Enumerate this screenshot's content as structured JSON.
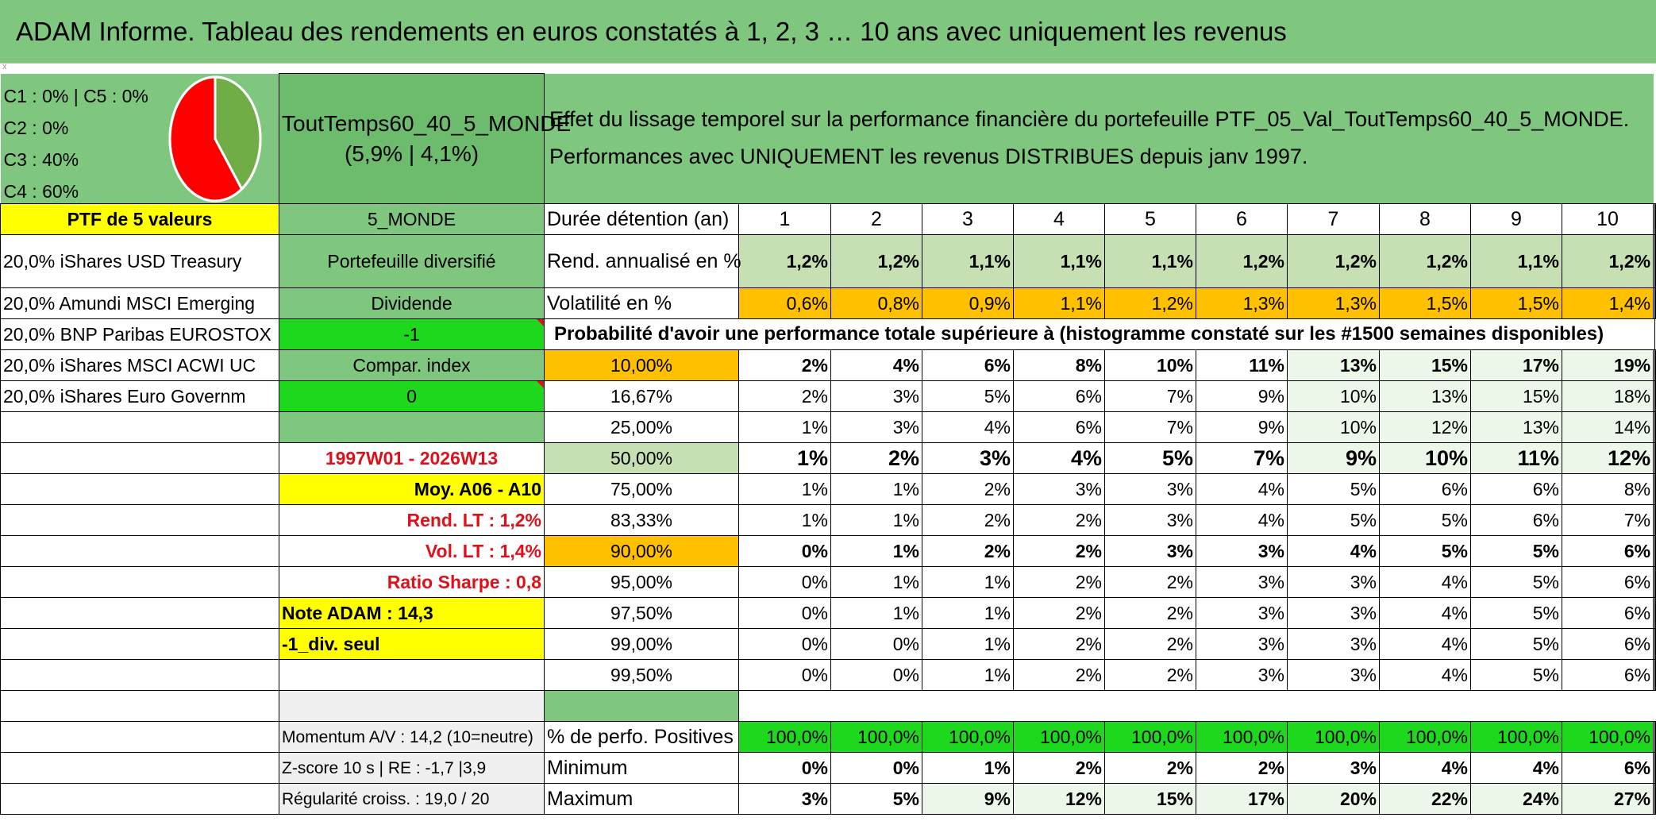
{
  "title": "ADAM Informe. Tableau des rendements en euros constatés à 1, 2, 3 … 10 ans avec uniquement les revenus",
  "marker": "x",
  "allocation": {
    "lines": [
      "C1 : 0% | C5 : 0%",
      "C2 : 0%",
      "C3 : 40%",
      "C4 : 60%"
    ],
    "pie_slices": [
      {
        "label": "C3",
        "percent": 40,
        "color": "#70ad47"
      },
      {
        "label": "C4",
        "percent": 60,
        "color": "#ff0000"
      }
    ]
  },
  "portfolio": {
    "name": "ToutTemps60_40_5_MONDE",
    "stats": "(5,9% | 4,1%)",
    "header_label": "PTF de 5 valeurs",
    "zone": "5_MONDE",
    "type": "Portefeuille diversifié",
    "dividende_label": "Dividende",
    "dividende_value": "-1",
    "compar_label": "Compar. index",
    "compar_value": "0",
    "period": "1997W01 - 2026W13",
    "moy": "Moy. A06 - A10",
    "rend_lt": "Rend. LT : 1,2%",
    "vol_lt": "Vol. LT : 1,4%",
    "sharpe": "Ratio Sharpe : 0,8",
    "note": "Note ADAM : 14,3",
    "div_seul": "-1_div. seul",
    "momentum": "Momentum A/V : 14,2 (10=neutre)",
    "zscore": "Z-score 10 s | RE : -1,7 |3,9",
    "regularite": "Régularité croiss. : 19,0 / 20"
  },
  "description": {
    "line1": "Effet du lissage temporel sur la performance financière du portefeuille PTF_05_Val_ToutTemps60_40_5_MONDE.",
    "line2": "Performances avec UNIQUEMENT les revenus DISTRIBUES depuis janv 1997."
  },
  "holdings": [
    "20,0% iShares USD Treasury",
    "20,0% Amundi MSCI Emerging",
    "20,0% BNP Paribas EUROSTOX",
    "20,0% iShares MSCI ACWI UC",
    "20,0% iShares Euro Governm"
  ],
  "table": {
    "duration_label": "Durée détention (an)",
    "years": [
      "1",
      "2",
      "3",
      "4",
      "5",
      "6",
      "7",
      "8",
      "9",
      "10"
    ],
    "rend_label": "Rend. annualisé en %",
    "rend": [
      "1,2%",
      "1,2%",
      "1,1%",
      "1,1%",
      "1,1%",
      "1,2%",
      "1,2%",
      "1,2%",
      "1,1%",
      "1,2%"
    ],
    "vol_label": "Volatilité en %",
    "vol": [
      "0,6%",
      "0,8%",
      "0,9%",
      "1,1%",
      "1,2%",
      "1,3%",
      "1,3%",
      "1,5%",
      "1,5%",
      "1,4%"
    ],
    "prob_label": "Probabilité d'avoir une performance totale supérieure à (histogramme constaté sur les #1500 semaines disponibles)",
    "quantiles": [
      {
        "q": "10,00%",
        "v": [
          "2%",
          "4%",
          "6%",
          "8%",
          "10%",
          "11%",
          "13%",
          "15%",
          "17%",
          "19%"
        ]
      },
      {
        "q": "16,67%",
        "v": [
          "2%",
          "3%",
          "5%",
          "6%",
          "7%",
          "9%",
          "10%",
          "13%",
          "15%",
          "18%"
        ]
      },
      {
        "q": "25,00%",
        "v": [
          "1%",
          "3%",
          "4%",
          "6%",
          "7%",
          "9%",
          "10%",
          "12%",
          "13%",
          "14%"
        ]
      },
      {
        "q": "50,00%",
        "v": [
          "1%",
          "2%",
          "3%",
          "4%",
          "5%",
          "7%",
          "9%",
          "10%",
          "11%",
          "12%"
        ]
      },
      {
        "q": "75,00%",
        "v": [
          "1%",
          "1%",
          "2%",
          "3%",
          "3%",
          "4%",
          "5%",
          "6%",
          "6%",
          "8%"
        ]
      },
      {
        "q": "83,33%",
        "v": [
          "1%",
          "1%",
          "2%",
          "2%",
          "3%",
          "4%",
          "5%",
          "5%",
          "6%",
          "7%"
        ]
      },
      {
        "q": "90,00%",
        "v": [
          "0%",
          "1%",
          "2%",
          "2%",
          "3%",
          "3%",
          "4%",
          "5%",
          "5%",
          "6%"
        ]
      },
      {
        "q": "95,00%",
        "v": [
          "0%",
          "1%",
          "1%",
          "2%",
          "2%",
          "3%",
          "3%",
          "4%",
          "5%",
          "6%"
        ]
      },
      {
        "q": "97,50%",
        "v": [
          "0%",
          "1%",
          "1%",
          "2%",
          "2%",
          "3%",
          "3%",
          "4%",
          "5%",
          "6%"
        ]
      },
      {
        "q": "99,00%",
        "v": [
          "0%",
          "0%",
          "1%",
          "2%",
          "2%",
          "3%",
          "3%",
          "4%",
          "5%",
          "6%"
        ]
      },
      {
        "q": "99,50%",
        "v": [
          "0%",
          "0%",
          "1%",
          "2%",
          "2%",
          "3%",
          "3%",
          "4%",
          "5%",
          "6%"
        ]
      }
    ],
    "pos_label": "% de perfo. Positives",
    "pos": [
      "100,0%",
      "100,0%",
      "100,0%",
      "100,0%",
      "100,0%",
      "100,0%",
      "100,0%",
      "100,0%",
      "100,0%",
      "100,0%"
    ],
    "min_label": "Minimum",
    "min": [
      "0%",
      "0%",
      "1%",
      "2%",
      "2%",
      "2%",
      "3%",
      "4%",
      "4%",
      "6%"
    ],
    "max_label": "Maximum",
    "max": [
      "3%",
      "5%",
      "9%",
      "12%",
      "15%",
      "17%",
      "20%",
      "22%",
      "24%",
      "27%"
    ]
  }
}
